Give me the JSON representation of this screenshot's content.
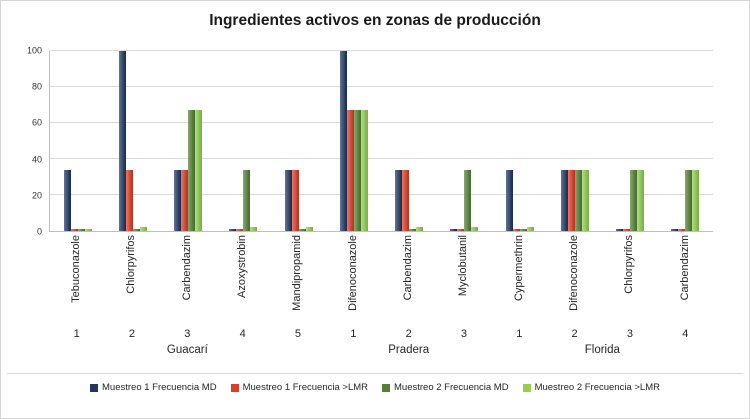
{
  "chart_data": {
    "type": "bar",
    "title": "Ingredientes activos en zonas de producción",
    "xlabel": "",
    "ylabel": "",
    "ylim": [
      0,
      100
    ],
    "yticks": [
      0,
      20,
      40,
      60,
      80,
      100
    ],
    "grid": true,
    "legend_position": "bottom",
    "categories": [
      {
        "label": "Tebuconazole",
        "num": "1",
        "group": "Guacarí"
      },
      {
        "label": "Chlorpyrifos",
        "num": "2",
        "group": "Guacarí"
      },
      {
        "label": "Carbendazim",
        "num": "3",
        "group": "Guacarí"
      },
      {
        "label": "Azoxystrobin",
        "num": "4",
        "group": "Guacarí"
      },
      {
        "label": "Mandipropamid",
        "num": "5",
        "group": "Guacarí"
      },
      {
        "label": "Difenoconazole",
        "num": "1",
        "group": "Pradera"
      },
      {
        "label": "Carbendazim",
        "num": "2",
        "group": "Pradera"
      },
      {
        "label": "Myclobutanil",
        "num": "3",
        "group": "Pradera"
      },
      {
        "label": "Cypermethrin",
        "num": "1",
        "group": "Florida"
      },
      {
        "label": "Difenoconazole",
        "num": "2",
        "group": "Florida"
      },
      {
        "label": "Chlorpyrifos",
        "num": "3",
        "group": "Florida"
      },
      {
        "label": "Carbendazim",
        "num": "4",
        "group": "Florida"
      }
    ],
    "groups": [
      {
        "name": "Guacarí",
        "span": 5
      },
      {
        "name": "Pradera",
        "span": 3
      },
      {
        "name": "Florida",
        "span": 4
      }
    ],
    "series": [
      {
        "name": "Muestreo 1  Frecuencia MD",
        "color": "#1f3864",
        "values": [
          34,
          100,
          34,
          1,
          34,
          100,
          34,
          1,
          34,
          34,
          1,
          1
        ]
      },
      {
        "name": "Muestreo 1  Frecuencia >LMR",
        "color": "#e23c26",
        "values": [
          1,
          34,
          34,
          1,
          34,
          67,
          34,
          1,
          1,
          34,
          1,
          1
        ]
      },
      {
        "name": "Muestreo 2 Frecuencia MD",
        "color": "#548235",
        "values": [
          1,
          1,
          67,
          34,
          1,
          67,
          1,
          34,
          1,
          34,
          34,
          34
        ]
      },
      {
        "name": "Muestreo 2 Frecuencia >LMR",
        "color": "#92d050",
        "values": [
          1,
          2,
          67,
          2,
          2,
          67,
          2,
          2,
          2,
          34,
          34,
          34
        ]
      }
    ]
  }
}
